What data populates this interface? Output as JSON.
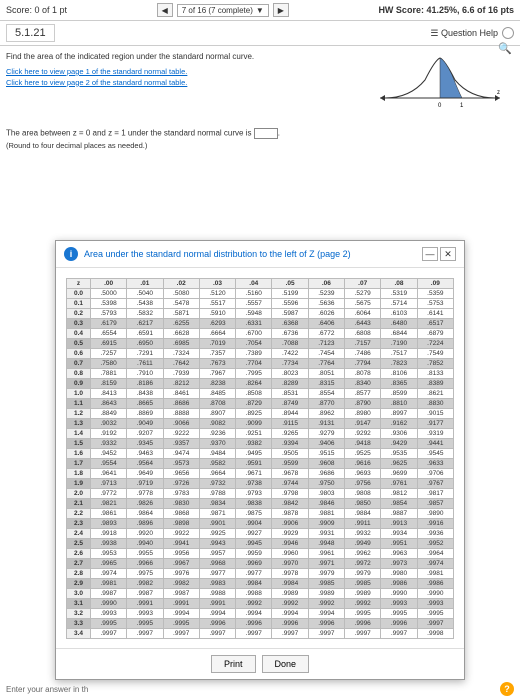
{
  "topbar": {
    "score_label": "Score: 0 of 1 pt",
    "progress": "7 of 16 (7 complete)",
    "hw_score": "HW Score: 41.25%, 6.6 of 16 pts"
  },
  "row2": {
    "qnum": "5.1.21",
    "qhelp": "Question Help"
  },
  "content": {
    "prompt": "Find the area of the indicated region under the standard normal curve.",
    "link1": "Click here to view page 1 of the standard normal table.",
    "link2": "Click here to view page 2 of the standard normal table.",
    "answer_text": "The area between z = 0 and z = 1 under the standard normal curve is ",
    "round_note": "(Round to four decimal places as needed.)"
  },
  "curve": {
    "shade_start": 0,
    "shade_end": 1,
    "fill": "#5b8bc4",
    "stroke": "#333"
  },
  "modal": {
    "title": "Area under the standard normal distribution to the left of Z (page 2)",
    "foot_print": "Print",
    "foot_done": "Done"
  },
  "table": {
    "cols": [
      "z",
      ".00",
      ".01",
      ".02",
      ".03",
      ".04",
      ".05",
      ".06",
      ".07",
      ".08",
      ".09"
    ],
    "rows": [
      [
        "0.0",
        ".5000",
        ".5040",
        ".5080",
        ".5120",
        ".5160",
        ".5199",
        ".5239",
        ".5279",
        ".5319",
        ".5359"
      ],
      [
        "0.1",
        ".5398",
        ".5438",
        ".5478",
        ".5517",
        ".5557",
        ".5596",
        ".5636",
        ".5675",
        ".5714",
        ".5753"
      ],
      [
        "0.2",
        ".5793",
        ".5832",
        ".5871",
        ".5910",
        ".5948",
        ".5987",
        ".6026",
        ".6064",
        ".6103",
        ".6141"
      ],
      [
        "0.3",
        ".6179",
        ".6217",
        ".6255",
        ".6293",
        ".6331",
        ".6368",
        ".6406",
        ".6443",
        ".6480",
        ".6517"
      ],
      [
        "0.4",
        ".6554",
        ".6591",
        ".6628",
        ".6664",
        ".6700",
        ".6736",
        ".6772",
        ".6808",
        ".6844",
        ".6879"
      ],
      [
        "0.5",
        ".6915",
        ".6950",
        ".6985",
        ".7019",
        ".7054",
        ".7088",
        ".7123",
        ".7157",
        ".7190",
        ".7224"
      ],
      [
        "0.6",
        ".7257",
        ".7291",
        ".7324",
        ".7357",
        ".7389",
        ".7422",
        ".7454",
        ".7486",
        ".7517",
        ".7549"
      ],
      [
        "0.7",
        ".7580",
        ".7611",
        ".7642",
        ".7673",
        ".7704",
        ".7734",
        ".7764",
        ".7794",
        ".7823",
        ".7852"
      ],
      [
        "0.8",
        ".7881",
        ".7910",
        ".7939",
        ".7967",
        ".7995",
        ".8023",
        ".8051",
        ".8078",
        ".8106",
        ".8133"
      ],
      [
        "0.9",
        ".8159",
        ".8186",
        ".8212",
        ".8238",
        ".8264",
        ".8289",
        ".8315",
        ".8340",
        ".8365",
        ".8389"
      ],
      [
        "1.0",
        ".8413",
        ".8438",
        ".8461",
        ".8485",
        ".8508",
        ".8531",
        ".8554",
        ".8577",
        ".8599",
        ".8621"
      ],
      [
        "1.1",
        ".8643",
        ".8665",
        ".8686",
        ".8708",
        ".8729",
        ".8749",
        ".8770",
        ".8790",
        ".8810",
        ".8830"
      ],
      [
        "1.2",
        ".8849",
        ".8869",
        ".8888",
        ".8907",
        ".8925",
        ".8944",
        ".8962",
        ".8980",
        ".8997",
        ".9015"
      ],
      [
        "1.3",
        ".9032",
        ".9049",
        ".9066",
        ".9082",
        ".9099",
        ".9115",
        ".9131",
        ".9147",
        ".9162",
        ".9177"
      ],
      [
        "1.4",
        ".9192",
        ".9207",
        ".9222",
        ".9236",
        ".9251",
        ".9265",
        ".9279",
        ".9292",
        ".9306",
        ".9319"
      ],
      [
        "1.5",
        ".9332",
        ".9345",
        ".9357",
        ".9370",
        ".9382",
        ".9394",
        ".9406",
        ".9418",
        ".9429",
        ".9441"
      ],
      [
        "1.6",
        ".9452",
        ".9463",
        ".9474",
        ".9484",
        ".9495",
        ".9505",
        ".9515",
        ".9525",
        ".9535",
        ".9545"
      ],
      [
        "1.7",
        ".9554",
        ".9564",
        ".9573",
        ".9582",
        ".9591",
        ".9599",
        ".9608",
        ".9616",
        ".9625",
        ".9633"
      ],
      [
        "1.8",
        ".9641",
        ".9649",
        ".9656",
        ".9664",
        ".9671",
        ".9678",
        ".9686",
        ".9693",
        ".9699",
        ".9706"
      ],
      [
        "1.9",
        ".9713",
        ".9719",
        ".9726",
        ".9732",
        ".9738",
        ".9744",
        ".9750",
        ".9756",
        ".9761",
        ".9767"
      ],
      [
        "2.0",
        ".9772",
        ".9778",
        ".9783",
        ".9788",
        ".9793",
        ".9798",
        ".9803",
        ".9808",
        ".9812",
        ".9817"
      ],
      [
        "2.1",
        ".9821",
        ".9826",
        ".9830",
        ".9834",
        ".9838",
        ".9842",
        ".9846",
        ".9850",
        ".9854",
        ".9857"
      ],
      [
        "2.2",
        ".9861",
        ".9864",
        ".9868",
        ".9871",
        ".9875",
        ".9878",
        ".9881",
        ".9884",
        ".9887",
        ".9890"
      ],
      [
        "2.3",
        ".9893",
        ".9896",
        ".9898",
        ".9901",
        ".9904",
        ".9906",
        ".9909",
        ".9911",
        ".9913",
        ".9916"
      ],
      [
        "2.4",
        ".9918",
        ".9920",
        ".9922",
        ".9925",
        ".9927",
        ".9929",
        ".9931",
        ".9932",
        ".9934",
        ".9936"
      ],
      [
        "2.5",
        ".9938",
        ".9940",
        ".9941",
        ".9943",
        ".9945",
        ".9946",
        ".9948",
        ".9949",
        ".9951",
        ".9952"
      ],
      [
        "2.6",
        ".9953",
        ".9955",
        ".9956",
        ".9957",
        ".9959",
        ".9960",
        ".9961",
        ".9962",
        ".9963",
        ".9964"
      ],
      [
        "2.7",
        ".9965",
        ".9966",
        ".9967",
        ".9968",
        ".9969",
        ".9970",
        ".9971",
        ".9972",
        ".9973",
        ".9974"
      ],
      [
        "2.8",
        ".9974",
        ".9975",
        ".9976",
        ".9977",
        ".9977",
        ".9978",
        ".9979",
        ".9979",
        ".9980",
        ".9981"
      ],
      [
        "2.9",
        ".9981",
        ".9982",
        ".9982",
        ".9983",
        ".9984",
        ".9984",
        ".9985",
        ".9985",
        ".9986",
        ".9986"
      ],
      [
        "3.0",
        ".9987",
        ".9987",
        ".9987",
        ".9988",
        ".9988",
        ".9989",
        ".9989",
        ".9989",
        ".9990",
        ".9990"
      ],
      [
        "3.1",
        ".9990",
        ".9991",
        ".9991",
        ".9991",
        ".9992",
        ".9992",
        ".9992",
        ".9992",
        ".9993",
        ".9993"
      ],
      [
        "3.2",
        ".9993",
        ".9993",
        ".9994",
        ".9994",
        ".9994",
        ".9994",
        ".9994",
        ".9995",
        ".9995",
        ".9995"
      ],
      [
        "3.3",
        ".9995",
        ".9995",
        ".9995",
        ".9996",
        ".9996",
        ".9996",
        ".9996",
        ".9996",
        ".9996",
        ".9997"
      ],
      [
        "3.4",
        ".9997",
        ".9997",
        ".9997",
        ".9997",
        ".9997",
        ".9997",
        ".9997",
        ".9997",
        ".9997",
        ".9998"
      ]
    ],
    "shaded_rows": [
      3,
      5,
      7,
      9,
      11,
      13,
      15,
      17,
      19,
      21,
      23,
      25,
      27,
      29,
      31,
      33
    ]
  },
  "bottom": {
    "enter": "Enter your answer in th"
  }
}
